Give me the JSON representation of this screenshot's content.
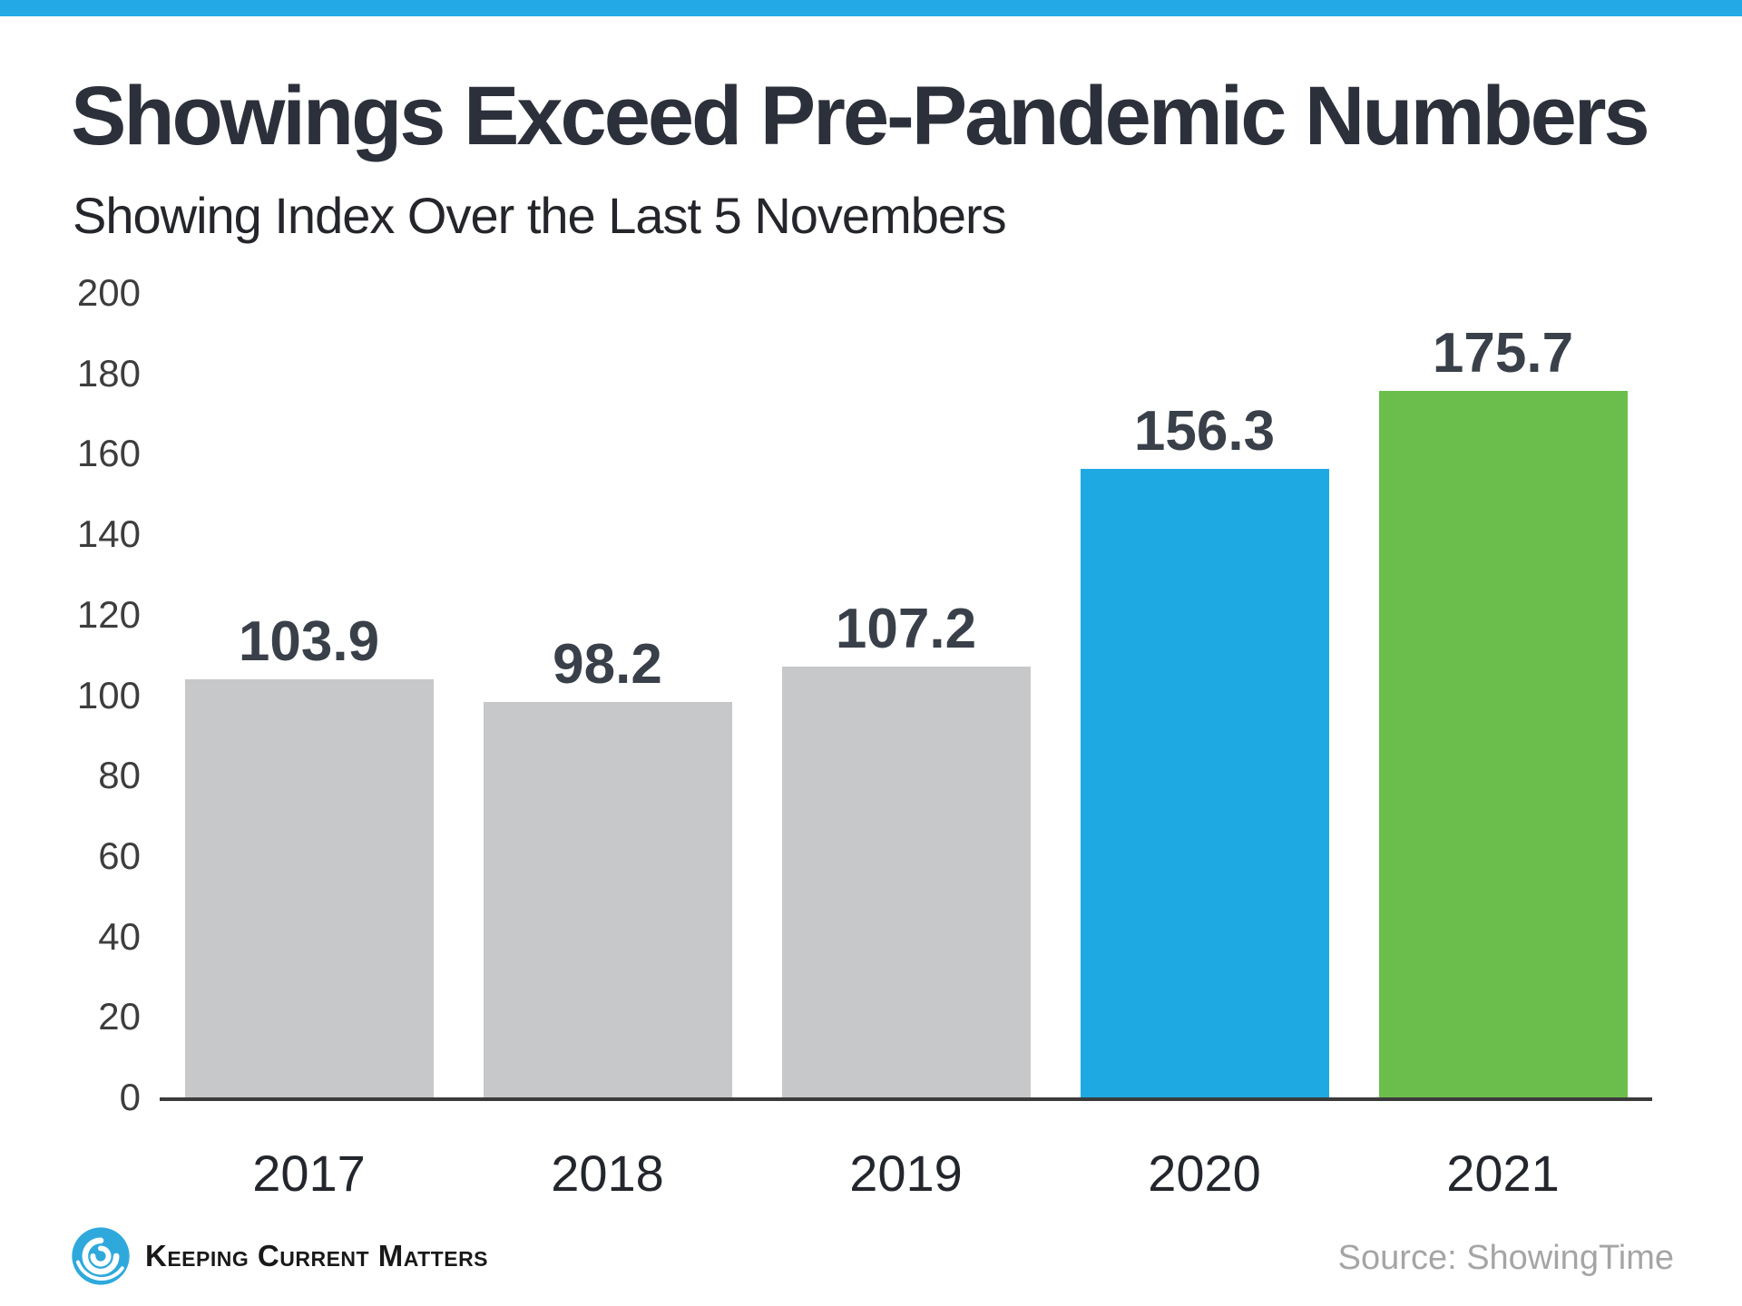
{
  "colors": {
    "accent_blue": "#22a9e6",
    "bar_gray": "#c7c8c9",
    "bar_blue": "#1fa9e2",
    "bar_green": "#6cbe4c",
    "axis_line": "#3b3b3b",
    "title_text": "#2c303a",
    "value_label_text": "#394049",
    "source_text": "#a5a5a5"
  },
  "header": {
    "title": "Showings Exceed Pre-Pandemic Numbers",
    "subtitle": "Showing Index Over the Last 5 Novembers"
  },
  "chart_data": {
    "type": "bar",
    "title": "Showings Exceed Pre-Pandemic Numbers",
    "subtitle": "Showing Index Over the Last 5 Novembers",
    "categories": [
      "2017",
      "2018",
      "2019",
      "2020",
      "2021"
    ],
    "values": [
      103.9,
      98.2,
      107.2,
      156.3,
      175.7
    ],
    "value_labels": [
      "103.9",
      "98.2",
      "107.2",
      "156.3",
      "175.7"
    ],
    "bar_colors": [
      "#c7c8c9",
      "#c7c8c9",
      "#c7c8c9",
      "#1fa9e2",
      "#6cbe4c"
    ],
    "xlabel": "",
    "ylabel": "",
    "ylim": [
      0,
      200
    ],
    "yticks": [
      0,
      20,
      40,
      60,
      80,
      100,
      120,
      140,
      160,
      180,
      200
    ],
    "grid": false,
    "legend": false
  },
  "footer": {
    "brand": "Keeping Current Matters",
    "source": "Source: ShowingTime"
  }
}
